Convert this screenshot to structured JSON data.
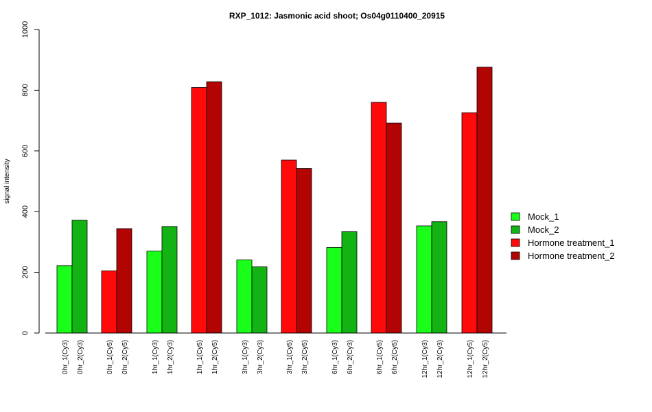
{
  "chart_data": {
    "type": "bar",
    "title": "RXP_1012: Jasmonic acid shoot; Os04g0110400_20915",
    "xlabel": "",
    "ylabel": "signal intensity",
    "ylim": [
      0,
      1000
    ],
    "yticks": [
      0,
      200,
      400,
      600,
      800,
      1000
    ],
    "grid": false,
    "legend_position": "right",
    "categories": [
      "0hr_1(Cy3)",
      "0hr_2(Cy3)",
      "0hr_1(Cy5)",
      "0hr_2(Cy5)",
      "1hr_1(Cy3)",
      "1hr_2(Cy3)",
      "1hr_1(Cy5)",
      "1hr_2(Cy5)",
      "3hr_1(Cy3)",
      "3hr_2(Cy3)",
      "3hr_1(Cy5)",
      "3hr_2(Cy5)",
      "6hr_1(Cy3)",
      "6hr_2(Cy3)",
      "6hr_1(Cy5)",
      "6hr_2(Cy5)",
      "12hr_1(Cy3)",
      "12hr_2(Cy3)",
      "12hr_1(Cy5)",
      "12hr_2(Cy5)"
    ],
    "values": [
      222,
      372,
      205,
      344,
      270,
      351,
      809,
      828,
      241,
      218,
      570,
      542,
      282,
      334,
      760,
      692,
      353,
      367,
      726,
      876
    ],
    "bar_series": [
      0,
      1,
      2,
      3,
      0,
      1,
      2,
      3,
      0,
      1,
      2,
      3,
      0,
      1,
      2,
      3,
      0,
      1,
      2,
      3
    ],
    "series": [
      {
        "name": "Mock_1",
        "color": "#19FF19"
      },
      {
        "name": "Mock_2",
        "color": "#12B312"
      },
      {
        "name": "Hormone treatment_1",
        "color": "#FF0A0A"
      },
      {
        "name": "Hormone treatment_2",
        "color": "#B30404"
      }
    ]
  }
}
